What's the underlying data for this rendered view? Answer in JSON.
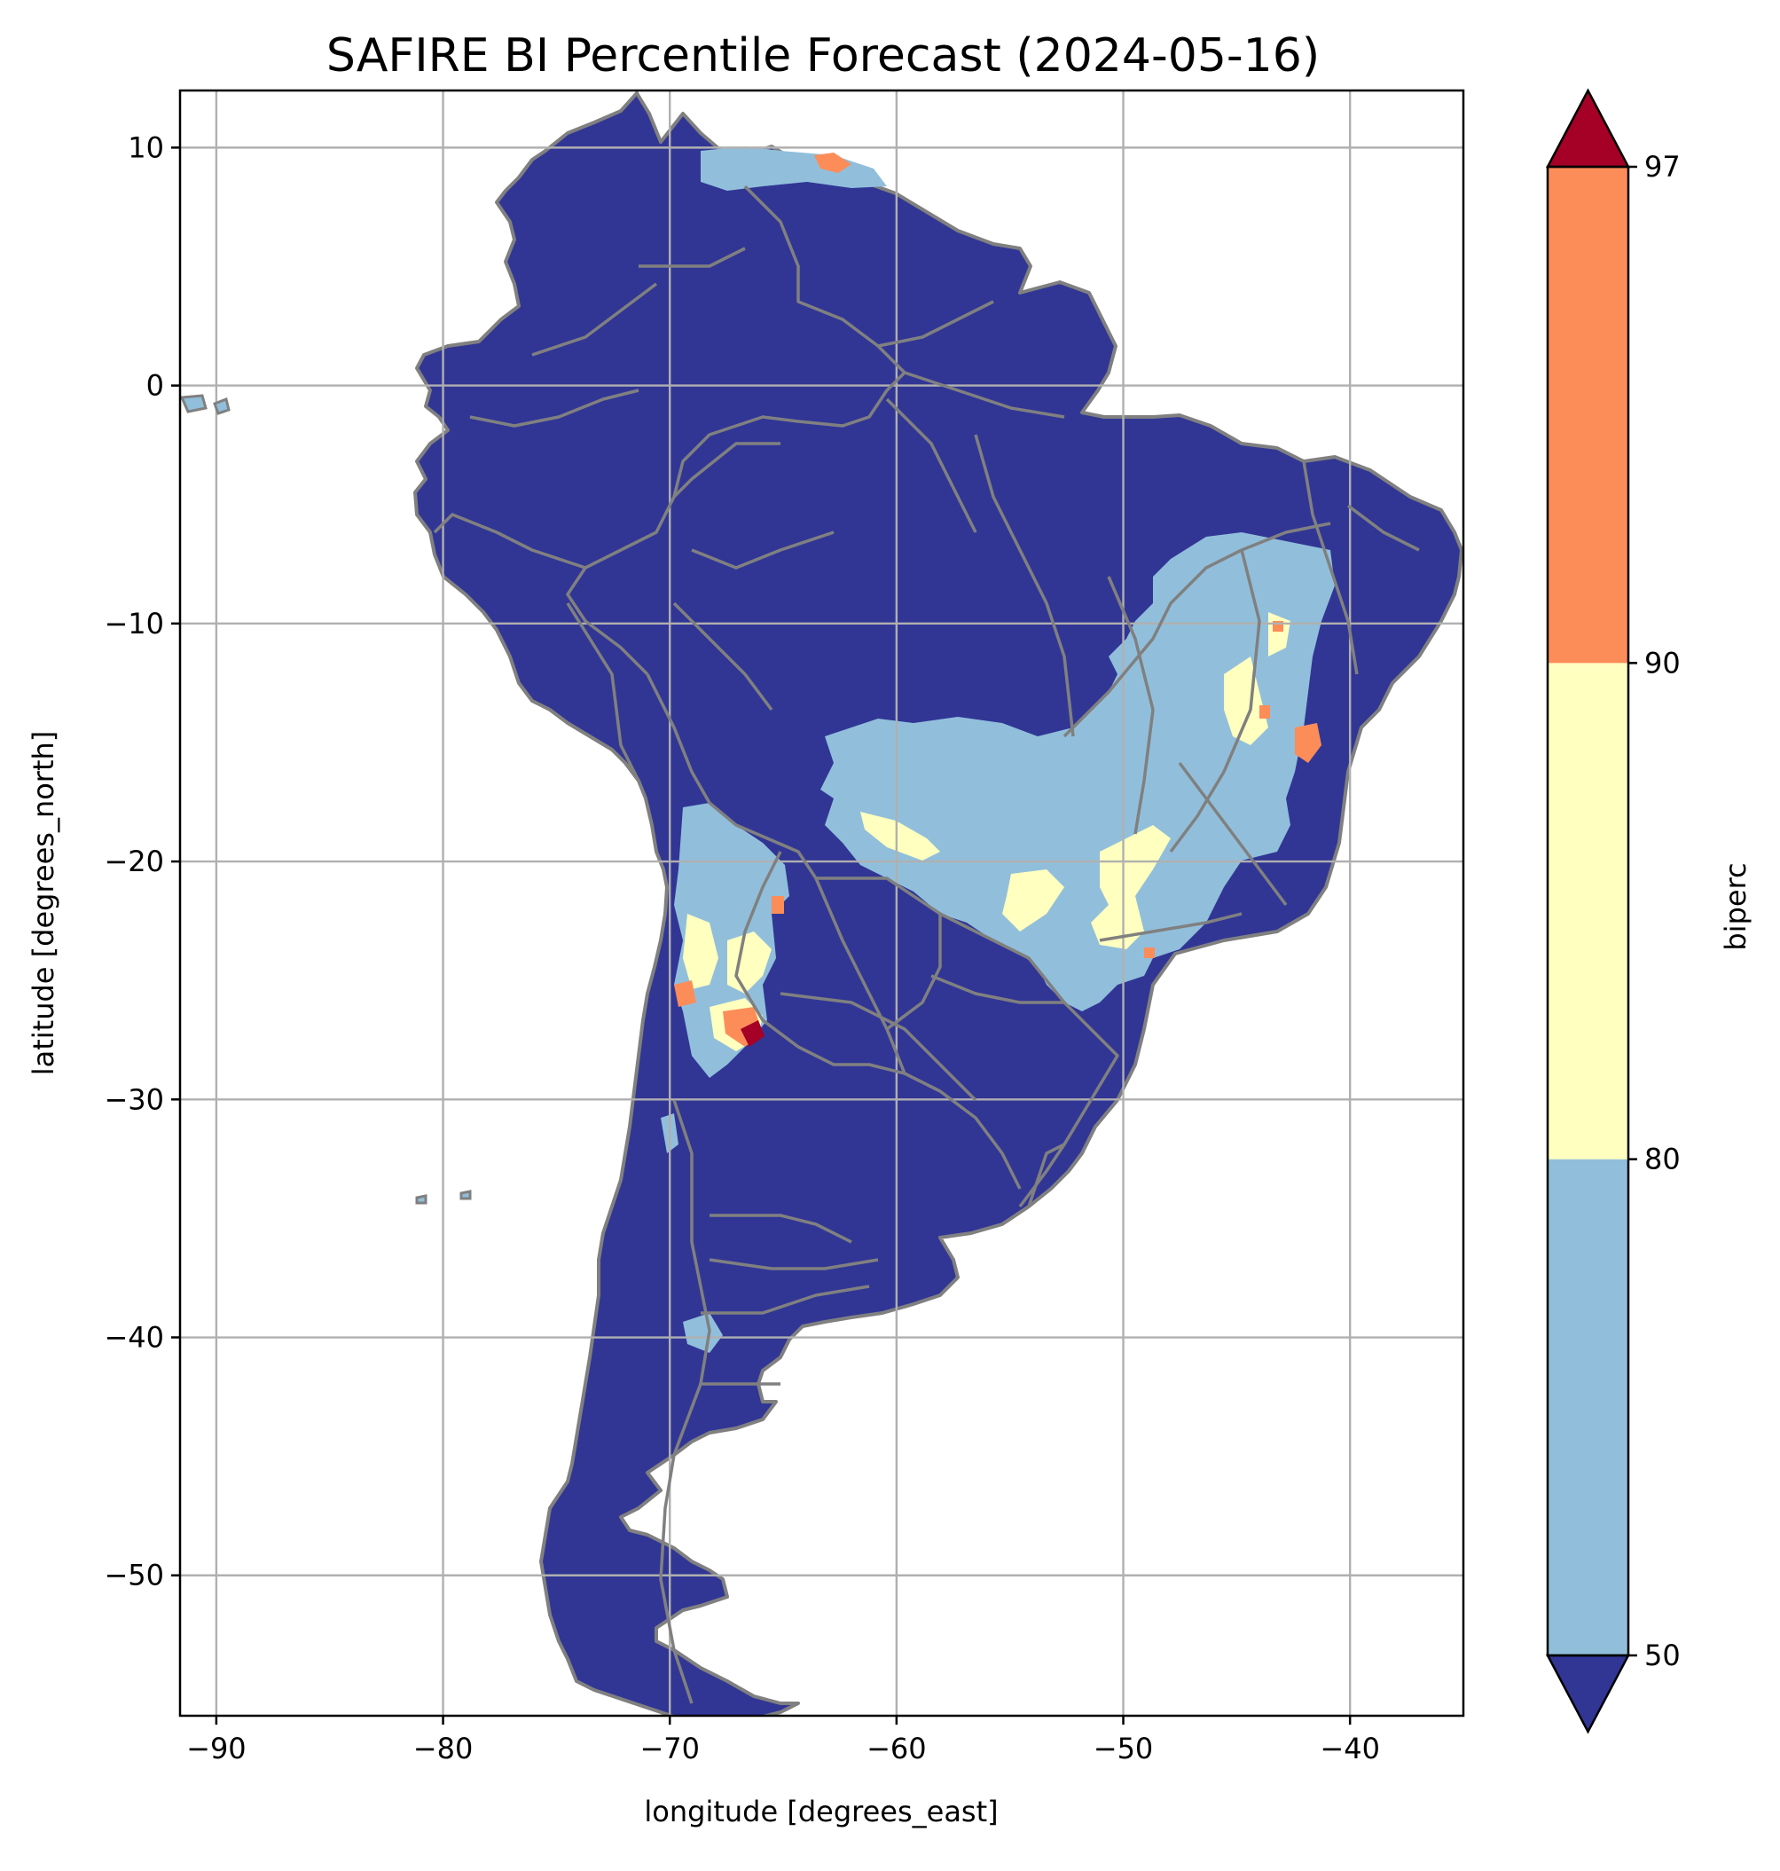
{
  "title": "SAFIRE BI Percentile Forecast (2024-05-16)",
  "map": {
    "xlabel": "longitude [degrees_east]",
    "ylabel": "latitude [degrees_north]",
    "xlim": [
      -91.6,
      -35.0
    ],
    "ylim": [
      -55.9,
      12.4
    ],
    "xticks": [
      -90,
      -80,
      -70,
      -60,
      -50,
      -40
    ],
    "yticks": [
      10,
      0,
      -10,
      -20,
      -30,
      -40,
      -50
    ],
    "xtick_labels": [
      "−90",
      "−80",
      "−70",
      "−60",
      "−50",
      "−40"
    ],
    "ytick_labels": [
      "10",
      "0",
      "−10",
      "−20",
      "−30",
      "−40",
      "−50"
    ],
    "grid": true,
    "land_color": "#313695",
    "border_color": "#808080",
    "gridline_color": "#b0b0b0",
    "regions_above_50th": [
      {
        "area": "northern Venezuela",
        "max_class": "90-97"
      },
      {
        "area": "central / eastern Brazil",
        "max_class": "90-97"
      },
      {
        "area": "northwest Argentina",
        "max_class": ">97"
      },
      {
        "area": "northern Patagonia",
        "max_class": "50-80"
      }
    ]
  },
  "colorbar": {
    "label": "biperc",
    "extend": "both",
    "boundaries": [
      50,
      80,
      90,
      97
    ],
    "tick_labels": [
      "50",
      "80",
      "90",
      "97"
    ],
    "colors": {
      "below_50": "#313695",
      "50_80": "#91bfdb",
      "80_90": "#ffffbf",
      "90_97": "#fc8d59",
      "above_97": "#a50026"
    }
  }
}
